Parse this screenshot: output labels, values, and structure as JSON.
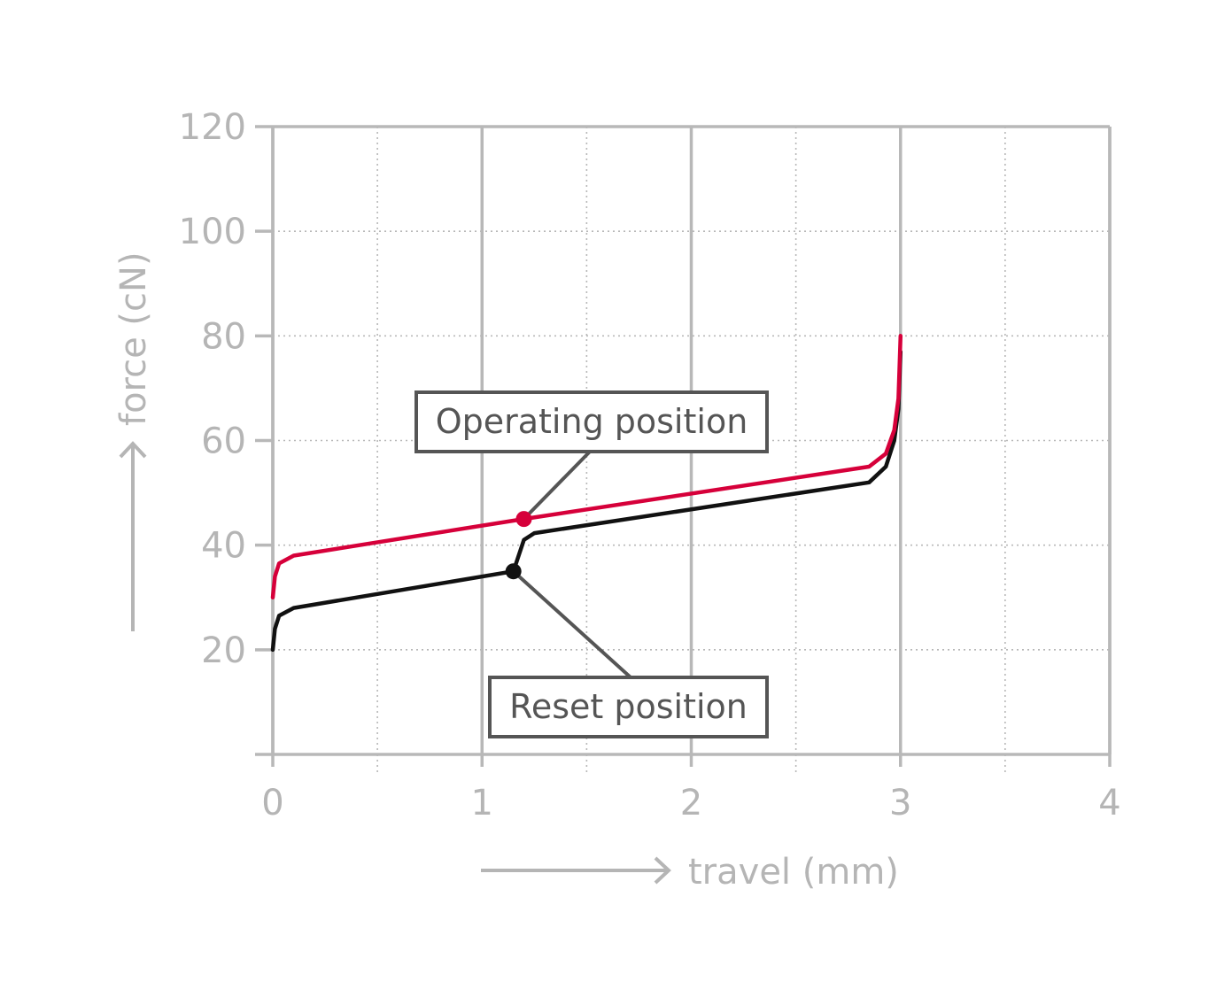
{
  "chart_data": {
    "type": "line",
    "xlabel": "travel (mm)",
    "ylabel": "force (cN)",
    "xlim": [
      0,
      4
    ],
    "ylim": [
      0,
      120
    ],
    "x_ticks": [
      0,
      1,
      2,
      3,
      4
    ],
    "y_ticks": [
      20,
      40,
      60,
      80,
      100,
      120
    ],
    "grid": true,
    "series": [
      {
        "color": "#d6003a",
        "points": [
          [
            0,
            30
          ],
          [
            0.01,
            34
          ],
          [
            0.03,
            36.5
          ],
          [
            0.1,
            38
          ],
          [
            1.2,
            45
          ],
          [
            2.85,
            55
          ],
          [
            2.93,
            57.5
          ],
          [
            2.97,
            62
          ],
          [
            2.99,
            68
          ],
          [
            3.0,
            80
          ]
        ]
      },
      {
        "color": "#111111",
        "points": [
          [
            0,
            20
          ],
          [
            0.01,
            24
          ],
          [
            0.03,
            26.5
          ],
          [
            0.1,
            28
          ],
          [
            1.15,
            35
          ],
          [
            1.2,
            41
          ],
          [
            1.25,
            42.3
          ],
          [
            2.85,
            52
          ],
          [
            2.93,
            55
          ],
          [
            2.97,
            60
          ],
          [
            2.99,
            66
          ],
          [
            3.0,
            77
          ]
        ]
      }
    ],
    "annotations": [
      {
        "text": "Operating position",
        "x": 1.2,
        "y": 45,
        "color": "#d6003a"
      },
      {
        "text": "Reset position",
        "x": 1.15,
        "y": 35,
        "color": "#111111"
      }
    ]
  }
}
